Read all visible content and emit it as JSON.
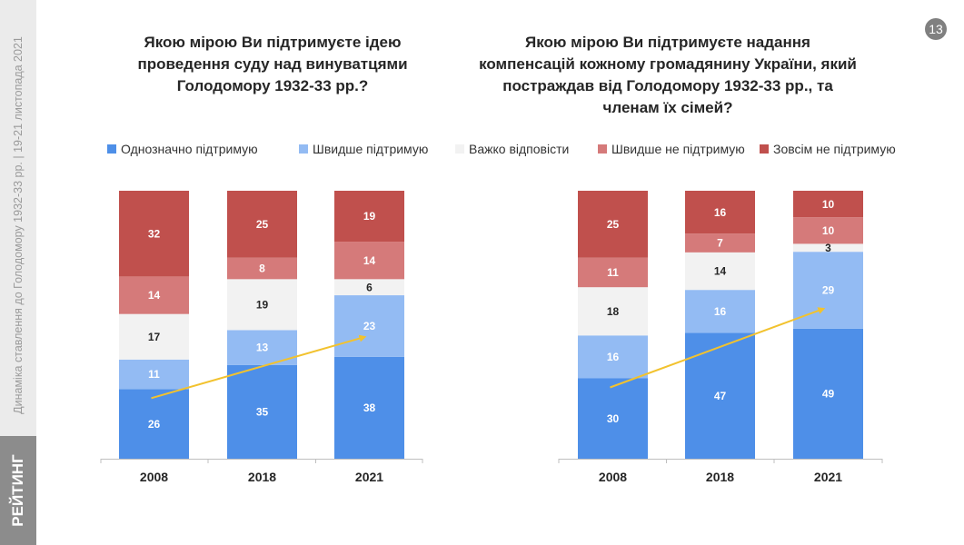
{
  "sidebar": {
    "brand": "РЕЙТИНГ",
    "caption": "Динаміка ставлення до Голодомору 1932-33 рр. | 19-21 листопада 2021"
  },
  "page_number": "13",
  "legend": {
    "items": [
      {
        "label": "Однозначно підтримую",
        "color": "#4e8fe8"
      },
      {
        "label": "Швидше підтримую",
        "color": "#93bbf3"
      },
      {
        "label": "Важко відповісти",
        "color": "#f2f2f2"
      },
      {
        "label": "Швидше не підтримую",
        "color": "#d57a7a"
      },
      {
        "label": "Зовсім не підтримую",
        "color": "#c0504d"
      }
    ]
  },
  "colors": {
    "trend_arrow": "#f2c22e",
    "axis": "#bfbfbf",
    "label_dark": "#262626",
    "label_light": "#ffffff"
  },
  "chart_data": [
    {
      "type": "bar",
      "stacked": true,
      "title": "Якою мірою Ви підтримуєте ідею проведення суду над винуватцями Голодомору 1932-33 рр.?",
      "title_lines": [
        "Якою мірою Ви підтримуєте ідею",
        "проведення суду над винуватцями",
        "Голодомору 1932-33 рр.?"
      ],
      "categories": [
        "2008",
        "2018",
        "2021"
      ],
      "series": [
        {
          "name": "Однозначно підтримую",
          "values": [
            26,
            35,
            38
          ]
        },
        {
          "name": "Швидше підтримую",
          "values": [
            11,
            13,
            23
          ]
        },
        {
          "name": "Важко відповісти",
          "values": [
            17,
            19,
            6
          ]
        },
        {
          "name": "Швидше не підтримую",
          "values": [
            14,
            8,
            14
          ]
        },
        {
          "name": "Зовсім не підтримую",
          "values": [
            32,
            25,
            19
          ]
        }
      ],
      "ylim": [
        0,
        100
      ],
      "grid": false,
      "legend_position": "top",
      "annotation": "trend arrow from 2008 to 2021"
    },
    {
      "type": "bar",
      "stacked": true,
      "title": "Якою мірою Ви підтримуєте надання компенсацій кожному громадянину України, який постраждав від Голодомору 1932-33 рр., та членам їх сімей?",
      "title_lines": [
        "Якою мірою Ви підтримуєте надання",
        "компенсацій кожному громадянину України, який",
        "постраждав від Голодомору 1932-33 рр., та",
        "членам їх сімей?"
      ],
      "categories": [
        "2008",
        "2018",
        "2021"
      ],
      "series": [
        {
          "name": "Однозначно підтримую",
          "values": [
            30,
            47,
            49
          ]
        },
        {
          "name": "Швидше підтримую",
          "values": [
            16,
            16,
            29
          ]
        },
        {
          "name": "Важко відповісти",
          "values": [
            18,
            14,
            3
          ]
        },
        {
          "name": "Швидше не підтримую",
          "values": [
            11,
            7,
            10
          ]
        },
        {
          "name": "Зовсім не підтримую",
          "values": [
            25,
            16,
            10
          ]
        }
      ],
      "ylim": [
        0,
        100
      ],
      "grid": false,
      "legend_position": "top",
      "annotation": "trend arrow from 2008 to 2021"
    }
  ]
}
